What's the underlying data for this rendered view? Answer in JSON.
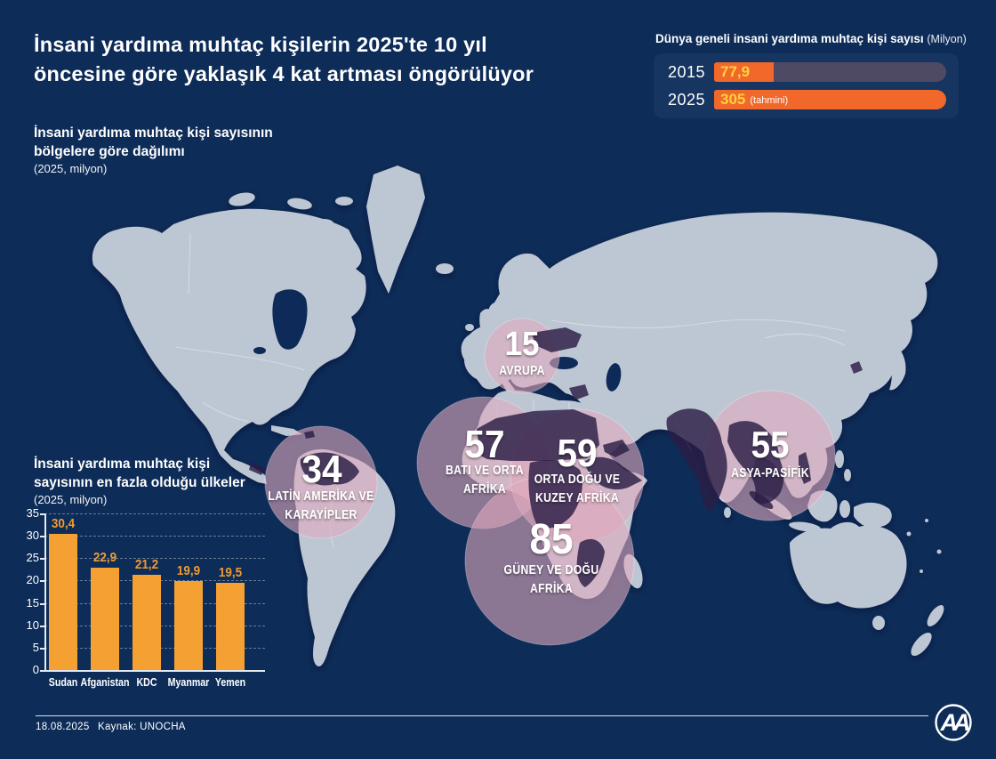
{
  "colors": {
    "background": "#0d2c58",
    "land": "#bdc7d4",
    "bubble_pink": "#e0a9bd",
    "dark_country": "#2b1d45",
    "accent_orange": "#f2682a",
    "bar_orange": "#f5a033",
    "value_yellow": "#ffd23f",
    "panel_track": "#4e4a63"
  },
  "title": {
    "line1": "İnsani yardıma muhtaç kişilerin 2025'te 10 yıl",
    "line2": "öncesine göre yaklaşık 4 kat artması öngörülüyor"
  },
  "map_section": {
    "heading_line1": "İnsani yardıma muhtaç kişi sayısının",
    "heading_line2": "bölgelere göre dağılımı",
    "subheading": "(2025, milyon)",
    "bubbles": [
      {
        "value": "15",
        "line1": "AVRUPA",
        "line2": ""
      },
      {
        "value": "34",
        "line1": "LATİN AMERİKA VE",
        "line2": "KARAYİPLER"
      },
      {
        "value": "57",
        "line1": "BATI VE ORTA",
        "line2": "AFRİKA"
      },
      {
        "value": "59",
        "line1": "ORTA DOĞU VE",
        "line2": "KUZEY AFRİKA"
      },
      {
        "value": "85",
        "line1": "GÜNEY VE DOĞU",
        "line2": "AFRİKA"
      },
      {
        "value": "55",
        "line1": "ASYA-PASİFİK",
        "line2": ""
      }
    ]
  },
  "countries_section": {
    "heading_line1": "İnsani yardıma muhtaç kişi",
    "heading_line2": "sayısının en fazla olduğu ülkeler",
    "subheading": "(2025, milyon)"
  },
  "footer": {
    "date": "18.08.2025",
    "source": "Kaynak: UNOCHA",
    "logo": "AA"
  },
  "chart_data": [
    {
      "id": "global_total",
      "type": "bar",
      "orientation": "horizontal",
      "title": "Dünya geneli insani yardıma muhtaç kişi sayısı",
      "unit": "(Milyon)",
      "categories": [
        "2015",
        "2025"
      ],
      "values": [
        77.9,
        305
      ],
      "value_labels": [
        "77,9",
        "305"
      ],
      "notes": [
        "",
        "(tahmini)"
      ],
      "xmax": 305
    },
    {
      "id": "regions_map",
      "type": "bubble-map",
      "title": "İnsani yardıma muhtaç kişi sayısının bölgelere göre dağılımı",
      "subtitle": "(2025, milyon)",
      "points": [
        {
          "region": "Avrupa",
          "value": 15
        },
        {
          "region": "Latin Amerika ve Karayipler",
          "value": 34
        },
        {
          "region": "Batı ve Orta Afrika",
          "value": 57
        },
        {
          "region": "Orta Doğu ve Kuzey Afrika",
          "value": 59
        },
        {
          "region": "Güney ve Doğu Afrika",
          "value": 85
        },
        {
          "region": "Asya-Pasifik",
          "value": 55
        }
      ]
    },
    {
      "id": "top_countries",
      "type": "bar",
      "title": "İnsani yardıma muhtaç kişi sayısının en fazla olduğu ülkeler",
      "subtitle": "(2025, milyon)",
      "categories": [
        "Sudan",
        "Afganistan",
        "KDC",
        "Myanmar",
        "Yemen"
      ],
      "values": [
        30.4,
        22.9,
        21.2,
        19.9,
        19.5
      ],
      "value_labels": [
        "30,4",
        "22,9",
        "21,2",
        "19,9",
        "19,5"
      ],
      "ylim": [
        0,
        35
      ],
      "yticks": [
        0,
        5,
        10,
        15,
        20,
        25,
        30,
        35
      ],
      "grid": "dashed"
    }
  ]
}
